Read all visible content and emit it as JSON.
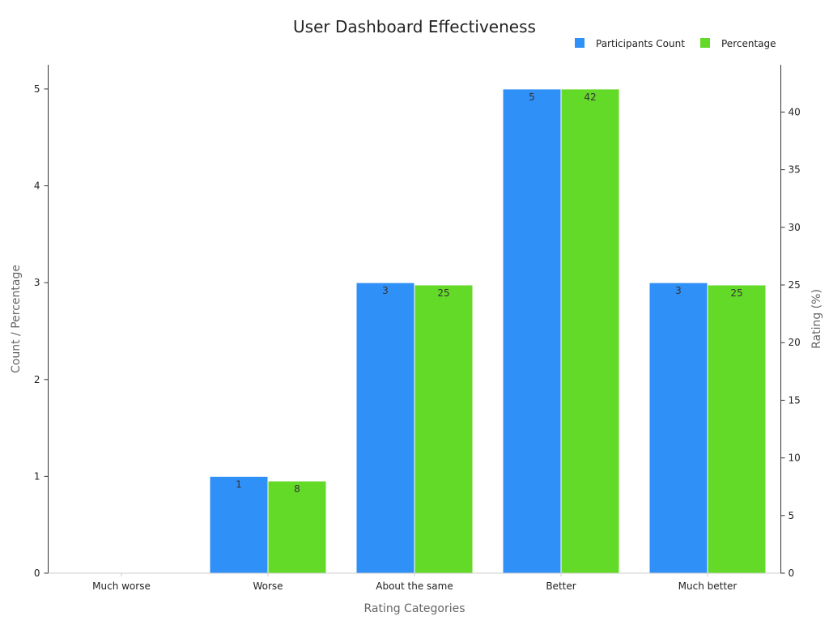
{
  "chart_data": {
    "type": "bar",
    "title": "User Dashboard Effectiveness",
    "xlabel": "Rating Categories",
    "ylabel": "Count / Percentage",
    "y2label": "Rating (%)",
    "categories": [
      "Much worse",
      "Worse",
      "About the same",
      "Better",
      "Much better"
    ],
    "series": [
      {
        "name": "Participants Count",
        "axis": "left",
        "values": [
          0,
          1,
          3,
          5,
          3
        ],
        "labels": [
          "",
          "1",
          "3",
          "5",
          "3"
        ],
        "color": "#2f90f8"
      },
      {
        "name": "Percentage",
        "axis": "right",
        "values": [
          0,
          8,
          25,
          42,
          25
        ],
        "labels": [
          "",
          "8",
          "25",
          "42",
          "25"
        ],
        "color": "#64da28"
      }
    ],
    "ylim": [
      0,
      5.25
    ],
    "y2lim": [
      0,
      44.1
    ],
    "yticks": [
      0,
      1,
      2,
      3,
      4,
      5
    ],
    "y2ticks": [
      0,
      5,
      10,
      15,
      20,
      25,
      30,
      35,
      40
    ],
    "legend_position": "top-right",
    "grid": false
  }
}
